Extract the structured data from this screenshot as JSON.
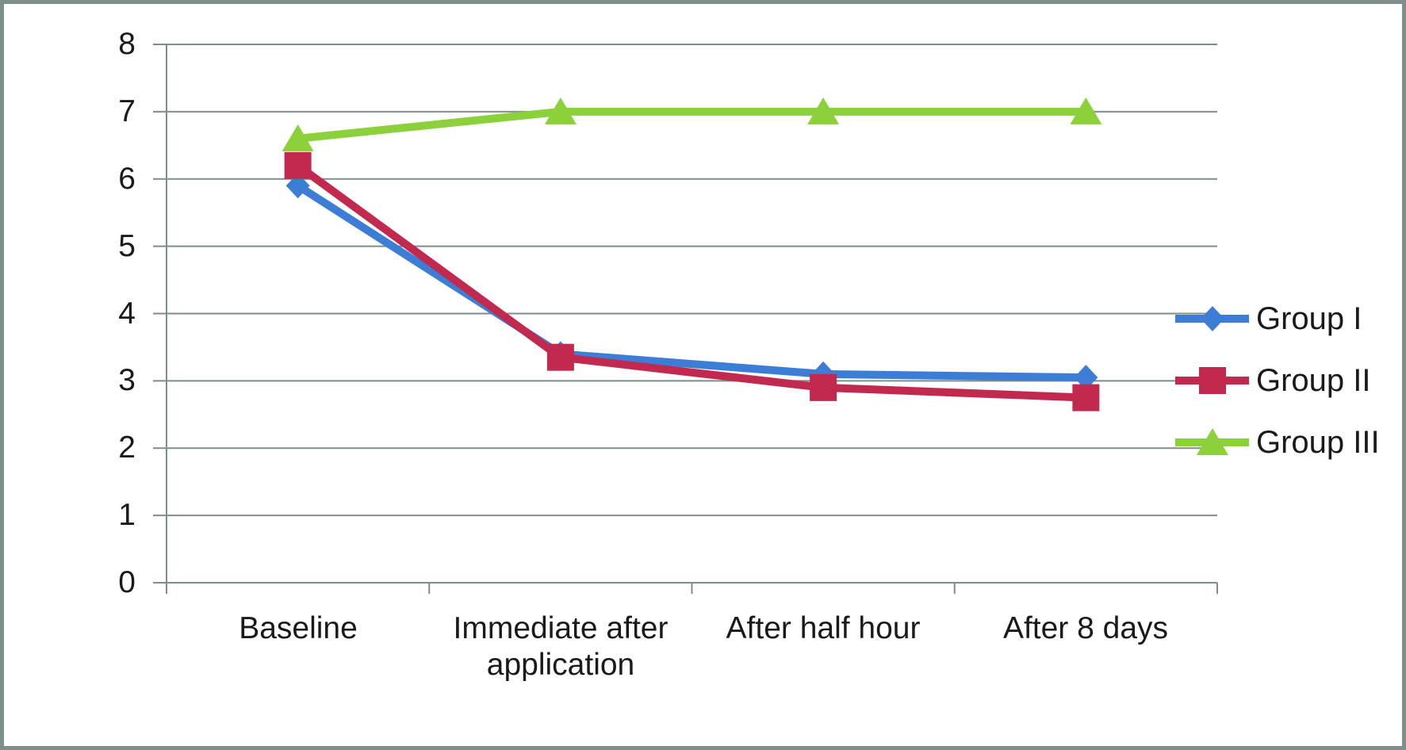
{
  "figure": {
    "background": "#FFFFFF",
    "border_color": "#7E8E8B",
    "text_color": "#1A1A1A"
  },
  "chart_data": {
    "type": "line",
    "title": "",
    "xlabel": "",
    "ylabel": "",
    "categories": [
      "Baseline",
      "Immediate after application",
      "After half hour",
      "After 8 days"
    ],
    "series": [
      {
        "name": "Group I",
        "color": "#3C7ED6",
        "marker": "diamond",
        "values": [
          5.9,
          3.4,
          3.1,
          3.05
        ]
      },
      {
        "name": "Group II",
        "color": "#C2294E",
        "marker": "square",
        "values": [
          6.2,
          3.35,
          2.9,
          2.75
        ]
      },
      {
        "name": "Group III",
        "color": "#8CD03C",
        "marker": "triangle",
        "values": [
          6.6,
          7,
          7,
          7
        ]
      }
    ],
    "ylim": [
      0,
      8
    ],
    "yticks": [
      0,
      1,
      2,
      3,
      4,
      5,
      6,
      7,
      8
    ],
    "grid": true,
    "gridline_color": "#7E8E8B",
    "legend_position": "right"
  }
}
